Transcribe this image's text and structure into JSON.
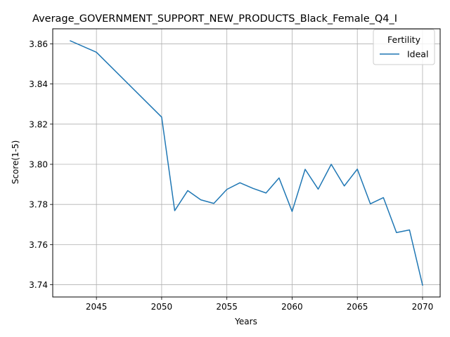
{
  "chart_data": {
    "type": "line",
    "title": "Average_GOVERNMENT_SUPPORT_NEW_PRODUCTS_Black_Female_Q4_I",
    "xlabel": "Years",
    "ylabel": "Score(1-5)",
    "xlim": [
      2041.65,
      2071.35
    ],
    "ylim": [
      3.7339,
      3.8675
    ],
    "xticks": [
      2045,
      2050,
      2055,
      2060,
      2065,
      2070
    ],
    "yticks": [
      3.74,
      3.76,
      3.78,
      3.8,
      3.82,
      3.84,
      3.86
    ],
    "grid": true,
    "legend": {
      "title": "Fertility",
      "placement": "top-right"
    },
    "series": [
      {
        "name": "Ideal",
        "color": "#1f77b4",
        "x": [
          2043,
          2045,
          2050,
          2051,
          2052,
          2053,
          2054,
          2055,
          2056,
          2057,
          2058,
          2059,
          2060,
          2061,
          2062,
          2063,
          2064,
          2065,
          2066,
          2067,
          2068,
          2069,
          2070
        ],
        "y": [
          3.8615,
          3.8558,
          3.8235,
          3.7769,
          3.7869,
          3.7823,
          3.7805,
          3.7875,
          3.7908,
          3.788,
          3.7857,
          3.7932,
          3.7765,
          3.7975,
          3.7876,
          3.8,
          3.7892,
          3.7976,
          3.7803,
          3.7834,
          3.766,
          3.7673,
          3.7398
        ]
      }
    ]
  }
}
